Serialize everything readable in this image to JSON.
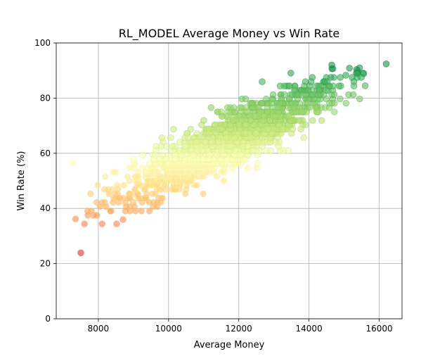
{
  "chart_data": {
    "type": "scatter",
    "title": "RL_MODEL Average Money vs Win Rate",
    "xlabel": "Average Money",
    "ylabel": "Win Rate (%)",
    "xlim": [
      6800,
      16650
    ],
    "ylim": [
      0,
      100
    ],
    "xticks": [
      8000,
      10000,
      12000,
      14000,
      16000
    ],
    "yticks": [
      0,
      20,
      40,
      60,
      80,
      100
    ],
    "grid": true,
    "colormap": "RdYlGn",
    "color_by": "y",
    "marker_alpha": 0.6,
    "notable_points": [
      {
        "x": 7250,
        "y": 56.4
      },
      {
        "x": 7500,
        "y": 23.9
      },
      {
        "x": 7350,
        "y": 36.2
      },
      {
        "x": 16200,
        "y": 92.4
      },
      {
        "x": 14650,
        "y": 92.0
      },
      {
        "x": 15600,
        "y": 84.5
      }
    ],
    "points": []
  }
}
